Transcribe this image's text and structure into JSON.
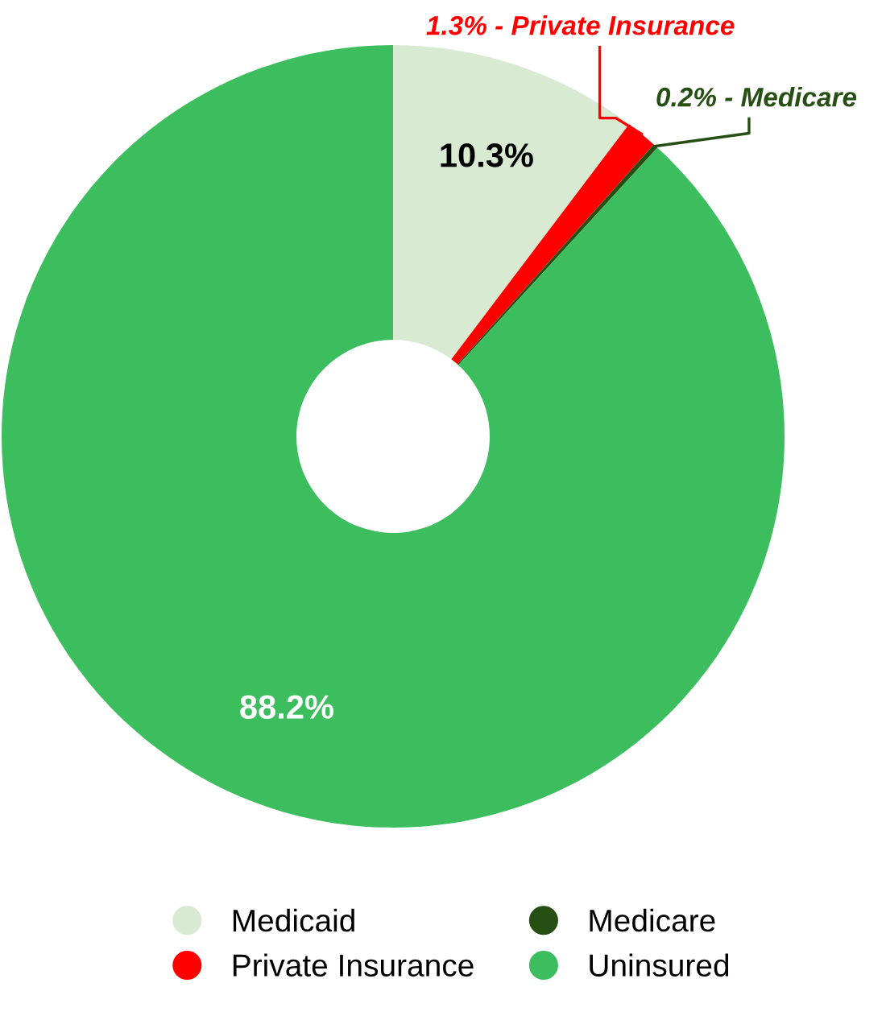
{
  "chart_data": {
    "type": "donut",
    "categories": [
      "Medicaid",
      "Private Insurance",
      "Medicare",
      "Uninsured"
    ],
    "values": [
      10.3,
      1.3,
      0.2,
      88.2
    ],
    "colors": [
      "#d9ead3",
      "#ff0000",
      "#274e13",
      "#3dbe5e"
    ],
    "value_labels": [
      "10.3%",
      "1.3% - Private Insurance",
      "0.2% - Medicare",
      "88.2%"
    ],
    "legend": "bottom"
  }
}
